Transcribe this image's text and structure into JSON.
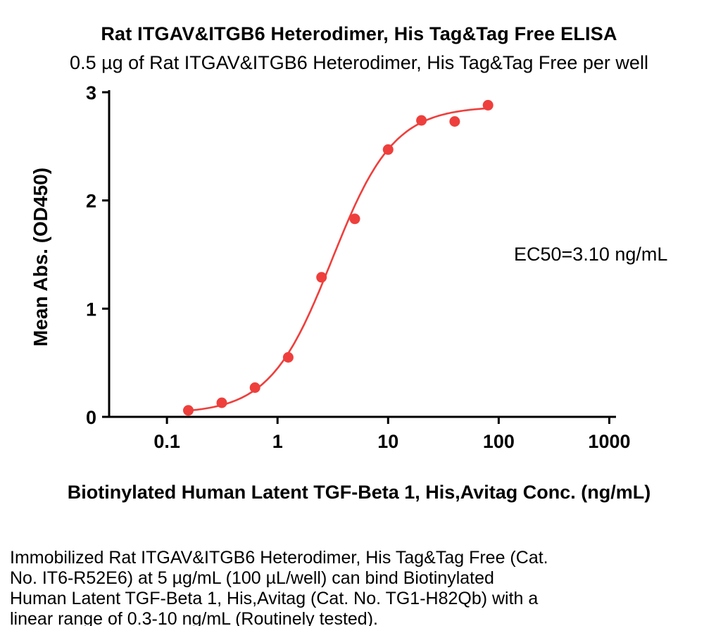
{
  "chart_data": {
    "type": "scatter",
    "title": "Rat ITGAV&ITGB6 Heterodimer, His Tag&Tag Free ELISA",
    "subtitle": "0.5 µg of Rat ITGAV&ITGB6 Heterodimer, His Tag&Tag Free per well",
    "xlabel": "Biotinylated Human Latent TGF-Beta 1, His,Avitag Conc. (ng/mL)",
    "ylabel": "Mean Abs. (OD450)",
    "x": [
      0.156,
      0.313,
      0.625,
      1.25,
      2.5,
      5,
      10,
      20,
      40,
      80
    ],
    "y": [
      0.06,
      0.13,
      0.27,
      0.55,
      1.29,
      1.83,
      2.47,
      2.74,
      2.73,
      2.88
    ],
    "xscale": "log",
    "xlim": [
      0.03,
      1150
    ],
    "ylim": [
      0,
      3
    ],
    "xticks": [
      0.1,
      1,
      10,
      100,
      1000
    ],
    "yticks": [
      0,
      1,
      2,
      3
    ],
    "grid": false,
    "legend": "none",
    "color": "#ee3f3c",
    "annotation": "EC50=3.10 ng/mL",
    "fit": {
      "model": "4PL",
      "bottom": 0.03,
      "top": 2.87,
      "ec50": 3.1,
      "hill": 1.55
    }
  },
  "footer": {
    "lines": [
      "Immobilized Rat ITGAV&ITGB6 Heterodimer, His Tag&Tag Free (Cat.",
      "No. IT6-R52E6) at 5 µg/mL (100 µL/well) can bind Biotinylated",
      "Human Latent TGF-Beta 1, His,Avitag (Cat. No. TG1-H82Qb) with a",
      "linear range of 0.3-10 ng/mL (Routinely tested)."
    ]
  }
}
